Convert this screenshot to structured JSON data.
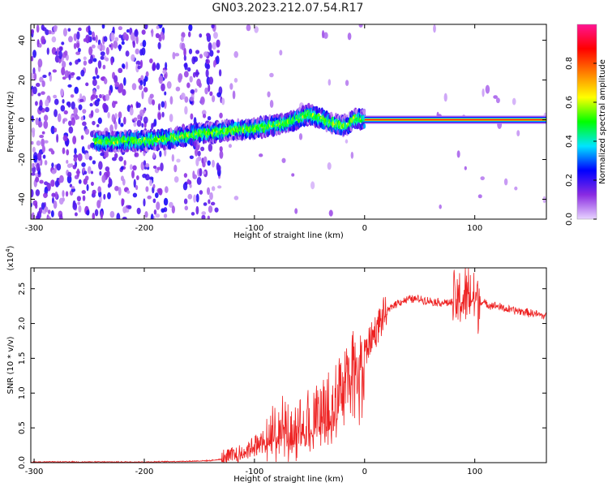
{
  "title": "GN03.2023.212.07.54.R17",
  "chart_data": [
    {
      "type": "heatmap",
      "xlabel": "Height of straight line (km)",
      "ylabel": "Frequency (Hz)",
      "xlim": [
        -303,
        165
      ],
      "ylim": [
        -50,
        48
      ],
      "xticks": [
        -300,
        -200,
        -100,
        0,
        100
      ],
      "yticks": [
        -40,
        -20,
        0,
        20,
        40
      ],
      "colorbar": {
        "label": "Normalized spectral amplitude",
        "range": [
          0,
          1
        ],
        "ticks": [
          "0.0",
          "0.2",
          "0.4",
          "0.6",
          "0.8"
        ],
        "tick_values": [
          0,
          0.2,
          0.4,
          0.6,
          0.8
        ],
        "colors": [
          "#e8d4ff",
          "#8a2be2",
          "#0000ff",
          "#00e5ff",
          "#00ff00",
          "#ffff00",
          "#ff7f00",
          "#ff0000",
          "#ff1493"
        ]
      },
      "ridge": {
        "x": [
          -240,
          -230,
          -220,
          -210,
          -200,
          -190,
          -180,
          -170,
          -160,
          -150,
          -140,
          -130,
          -120,
          -110,
          -100,
          -90,
          -80,
          -70,
          -60,
          -50,
          -40,
          -30,
          -20,
          -15,
          -10,
          -5,
          0,
          50,
          100,
          165
        ],
        "y": [
          -11,
          -11,
          -11,
          -10.5,
          -10.5,
          -10,
          -9.5,
          -9,
          -8,
          -7,
          -6.5,
          -6,
          -5,
          -5,
          -4.5,
          -3.5,
          -2.5,
          -1.5,
          0.5,
          3,
          0.5,
          -1.5,
          -3,
          -2.5,
          0.5,
          0.5,
          0,
          0,
          0,
          0
        ]
      },
      "noise_regions": [
        [
          -303,
          -180
        ],
        [
          -165,
          -130
        ]
      ]
    },
    {
      "type": "line",
      "xlabel": "Height of straight line (km)",
      "ylabel": "SNR (10 * v/v)",
      "y_scale_label": "(x10",
      "y_scale_exp": "4",
      "y_scale_close": ")",
      "xlim": [
        -303,
        165
      ],
      "ylim": [
        0,
        2.8
      ],
      "xticks": [
        -300,
        -200,
        -100,
        0,
        100
      ],
      "yticks": [
        0.0,
        0.5,
        1.0,
        1.5,
        2.0,
        2.5
      ],
      "ytick_labels": [
        "0.0",
        "0.5",
        "1.0",
        "1.5",
        "2.0",
        "2.5"
      ],
      "series": [
        {
          "color": "#ee2222",
          "x": [
            -303,
            -250,
            -200,
            -160,
            -140,
            -125,
            -115,
            -105,
            -95,
            -85,
            -75,
            -65,
            -55,
            -45,
            -40,
            -35,
            -30,
            -25,
            -20,
            -15,
            -10,
            -5,
            0,
            5,
            10,
            15,
            20,
            25,
            30,
            40,
            50,
            60,
            70,
            80,
            90,
            95,
            100,
            110,
            120,
            130,
            140,
            150,
            160,
            165
          ],
          "y": [
            0.01,
            0.01,
            0.01,
            0.02,
            0.03,
            0.06,
            0.12,
            0.2,
            0.3,
            0.4,
            0.45,
            0.5,
            0.55,
            0.62,
            0.7,
            0.8,
            0.9,
            1.05,
            1.25,
            1.35,
            1.45,
            1.5,
            1.55,
            1.75,
            1.9,
            2.05,
            2.15,
            2.25,
            2.3,
            2.35,
            2.35,
            2.32,
            2.3,
            2.3,
            2.35,
            2.4,
            2.35,
            2.28,
            2.25,
            2.2,
            2.18,
            2.15,
            2.12,
            2.1
          ]
        }
      ]
    }
  ]
}
